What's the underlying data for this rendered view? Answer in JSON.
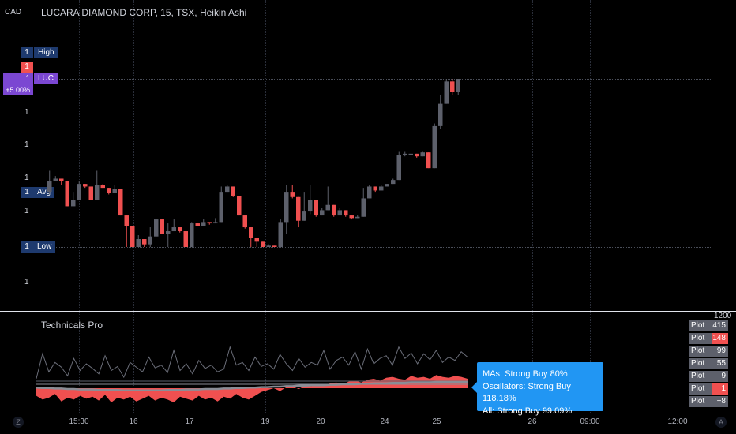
{
  "header": {
    "currency": "CAD",
    "symbol_title": "LUCARA DIAMOND CORP, 15, TSX, Heikin Ashi"
  },
  "price_axis": {
    "labels": [
      "1",
      "1",
      "1",
      "1",
      "1",
      "1"
    ],
    "tags": {
      "high": {
        "value": "1",
        "label": "High"
      },
      "red_value": "1",
      "current": {
        "value": "1",
        "label": "LUC",
        "change": "+5.00%"
      },
      "avg": {
        "value": "1",
        "label": "Avg"
      },
      "low": {
        "value": "1",
        "label": "Low"
      }
    }
  },
  "indicator": {
    "name": "Technicals Pro",
    "scale_top": "1200",
    "plots": [
      {
        "label": "Plot",
        "value": "415",
        "color": "#5d606b"
      },
      {
        "label": "Plot",
        "value": "148",
        "color": "#f05050"
      },
      {
        "label": "Plot",
        "value": "99",
        "color": "#5d606b"
      },
      {
        "label": "Plot",
        "value": "55",
        "color": "#5d606b"
      },
      {
        "label": "Plot",
        "value": "9",
        "color": "#5d606b"
      },
      {
        "label": "Plot",
        "value": "1",
        "color": "#f05050"
      },
      {
        "label": "Plot",
        "value": "−8",
        "color": "#5d606b"
      }
    ],
    "summary": {
      "mas": "MAs: Strong Buy 80%",
      "oscillators": "Oscillators: Strong Buy 118.18%",
      "all": "All: Strong Buy 99.09%"
    }
  },
  "time_axis": {
    "ticks": [
      "15:30",
      "16",
      "17",
      "19",
      "20",
      "24",
      "25",
      "26",
      "09:00",
      "12:00"
    ],
    "left_icon": "Z",
    "right_icon": "A"
  },
  "colors": {
    "bull": "#5d606b",
    "bear": "#f05050",
    "accent": "#2196f3",
    "navy_tag": "#1e3a6e",
    "purple_tag": "#7b47d2"
  },
  "chart_data": {
    "type": "candlestick",
    "bull_color": "#5d606b",
    "bear_color": "#f05050",
    "candles": [
      {
        "o": 4.2,
        "c": 5.0,
        "h": 5.8,
        "l": 4.0,
        "dir": "up"
      },
      {
        "o": 5.0,
        "c": 5.2,
        "h": 5.4,
        "l": 5.0,
        "dir": "up"
      },
      {
        "o": 5.2,
        "c": 5.0,
        "h": 5.2,
        "l": 4.7,
        "dir": "down"
      },
      {
        "o": 5.0,
        "c": 3.1,
        "h": 5.0,
        "l": 3.1,
        "dir": "down"
      },
      {
        "o": 3.1,
        "c": 3.6,
        "h": 4.2,
        "l": 3.1,
        "dir": "up"
      },
      {
        "o": 3.6,
        "c": 4.8,
        "h": 5.0,
        "l": 3.6,
        "dir": "up"
      },
      {
        "o": 4.8,
        "c": 4.6,
        "h": 4.8,
        "l": 4.5,
        "dir": "down"
      },
      {
        "o": 4.6,
        "c": 3.6,
        "h": 4.6,
        "l": 3.6,
        "dir": "down"
      },
      {
        "o": 3.6,
        "c": 4.7,
        "h": 5.8,
        "l": 3.6,
        "dir": "up"
      },
      {
        "o": 4.7,
        "c": 4.5,
        "h": 4.8,
        "l": 4.5,
        "dir": "down"
      },
      {
        "o": 4.5,
        "c": 4.1,
        "h": 4.5,
        "l": 4.0,
        "dir": "down"
      },
      {
        "o": 4.1,
        "c": 4.4,
        "h": 4.7,
        "l": 4.1,
        "dir": "up"
      },
      {
        "o": 4.4,
        "c": 2.4,
        "h": 4.4,
        "l": 2.4,
        "dir": "down"
      },
      {
        "o": 2.4,
        "c": 1.6,
        "h": 2.4,
        "l": 0.0,
        "dir": "down"
      },
      {
        "o": 1.6,
        "c": 0.0,
        "h": 1.6,
        "l": 0.0,
        "dir": "down"
      },
      {
        "o": 0.0,
        "c": 0.6,
        "h": 0.9,
        "l": 0.0,
        "dir": "up"
      },
      {
        "o": 0.6,
        "c": 0.2,
        "h": 0.6,
        "l": 0.0,
        "dir": "down"
      },
      {
        "o": 0.2,
        "c": 0.8,
        "h": 1.5,
        "l": 0.0,
        "dir": "up"
      },
      {
        "o": 0.8,
        "c": 2.1,
        "h": 2.1,
        "l": 0.8,
        "dir": "up"
      },
      {
        "o": 2.1,
        "c": 1.0,
        "h": 2.1,
        "l": 1.0,
        "dir": "down"
      },
      {
        "o": 1.0,
        "c": 1.2,
        "h": 1.8,
        "l": 0.0,
        "dir": "up"
      },
      {
        "o": 1.2,
        "c": 1.5,
        "h": 2.1,
        "l": 1.2,
        "dir": "up"
      },
      {
        "o": 1.5,
        "c": 1.2,
        "h": 1.5,
        "l": 1.1,
        "dir": "down"
      },
      {
        "o": 1.2,
        "c": 0.0,
        "h": 1.2,
        "l": 0.0,
        "dir": "down"
      },
      {
        "o": 0.0,
        "c": 1.8,
        "h": 1.9,
        "l": 0.0,
        "dir": "up"
      },
      {
        "o": 1.8,
        "c": 1.6,
        "h": 1.8,
        "l": 1.6,
        "dir": "down"
      },
      {
        "o": 1.6,
        "c": 1.9,
        "h": 2.1,
        "l": 1.6,
        "dir": "up"
      },
      {
        "o": 1.9,
        "c": 1.8,
        "h": 1.9,
        "l": 1.7,
        "dir": "down"
      },
      {
        "o": 1.8,
        "c": 1.9,
        "h": 2.2,
        "l": 1.8,
        "dir": "up"
      },
      {
        "o": 1.9,
        "c": 4.2,
        "h": 4.6,
        "l": 1.9,
        "dir": "up"
      },
      {
        "o": 4.2,
        "c": 4.6,
        "h": 4.7,
        "l": 4.2,
        "dir": "up"
      },
      {
        "o": 4.6,
        "c": 3.9,
        "h": 4.6,
        "l": 3.8,
        "dir": "down"
      },
      {
        "o": 3.9,
        "c": 2.4,
        "h": 3.9,
        "l": 2.4,
        "dir": "down"
      },
      {
        "o": 2.4,
        "c": 1.5,
        "h": 2.4,
        "l": 1.4,
        "dir": "down"
      },
      {
        "o": 1.5,
        "c": 0.7,
        "h": 1.5,
        "l": 0.0,
        "dir": "down"
      },
      {
        "o": 0.7,
        "c": 0.4,
        "h": 0.7,
        "l": 0.0,
        "dir": "down"
      },
      {
        "o": 0.4,
        "c": 0.0,
        "h": 0.4,
        "l": 0.0,
        "dir": "down"
      },
      {
        "o": 0.0,
        "c": 0.1,
        "h": 0.2,
        "l": 0.0,
        "dir": "up"
      },
      {
        "o": 0.1,
        "c": 0.0,
        "h": 0.1,
        "l": 0.0,
        "dir": "down"
      },
      {
        "o": 0.0,
        "c": 1.9,
        "h": 2.1,
        "l": 0.0,
        "dir": "up"
      },
      {
        "o": 1.9,
        "c": 4.2,
        "h": 4.7,
        "l": 1.0,
        "dir": "up"
      },
      {
        "o": 4.2,
        "c": 3.8,
        "h": 4.7,
        "l": 3.7,
        "dir": "down"
      },
      {
        "o": 3.8,
        "c": 2.0,
        "h": 3.8,
        "l": 1.5,
        "dir": "down"
      },
      {
        "o": 2.0,
        "c": 2.7,
        "h": 4.2,
        "l": 2.0,
        "dir": "up"
      },
      {
        "o": 2.7,
        "c": 3.6,
        "h": 4.7,
        "l": 2.5,
        "dir": "up"
      },
      {
        "o": 3.6,
        "c": 2.4,
        "h": 3.6,
        "l": 2.3,
        "dir": "down"
      },
      {
        "o": 2.4,
        "c": 2.8,
        "h": 3.0,
        "l": 2.4,
        "dir": "up"
      },
      {
        "o": 2.8,
        "c": 3.2,
        "h": 4.6,
        "l": 2.8,
        "dir": "up"
      },
      {
        "o": 3.2,
        "c": 2.4,
        "h": 3.2,
        "l": 2.3,
        "dir": "down"
      },
      {
        "o": 2.4,
        "c": 2.8,
        "h": 3.0,
        "l": 2.4,
        "dir": "up"
      },
      {
        "o": 2.8,
        "c": 2.4,
        "h": 2.8,
        "l": 2.3,
        "dir": "down"
      },
      {
        "o": 2.4,
        "c": 2.2,
        "h": 2.4,
        "l": 2.1,
        "dir": "down"
      },
      {
        "o": 2.2,
        "c": 2.3,
        "h": 2.4,
        "l": 2.2,
        "dir": "up"
      },
      {
        "o": 2.3,
        "c": 3.7,
        "h": 4.5,
        "l": 2.3,
        "dir": "up"
      },
      {
        "o": 3.7,
        "c": 4.6,
        "h": 4.7,
        "l": 3.7,
        "dir": "up"
      },
      {
        "o": 4.6,
        "c": 4.3,
        "h": 4.6,
        "l": 4.2,
        "dir": "down"
      },
      {
        "o": 4.3,
        "c": 4.6,
        "h": 4.7,
        "l": 4.3,
        "dir": "up"
      },
      {
        "o": 4.6,
        "c": 4.8,
        "h": 4.8,
        "l": 4.6,
        "dir": "up"
      },
      {
        "o": 4.8,
        "c": 5.1,
        "h": 5.2,
        "l": 4.8,
        "dir": "up"
      },
      {
        "o": 5.1,
        "c": 7.0,
        "h": 7.3,
        "l": 5.1,
        "dir": "up"
      },
      {
        "o": 7.0,
        "c": 7.1,
        "h": 7.3,
        "l": 6.9,
        "dir": "up"
      },
      {
        "o": 7.1,
        "c": 7.1,
        "h": 7.1,
        "l": 7.0,
        "dir": "up"
      },
      {
        "o": 7.1,
        "c": 6.9,
        "h": 7.1,
        "l": 6.8,
        "dir": "down"
      },
      {
        "o": 6.9,
        "c": 7.2,
        "h": 7.3,
        "l": 6.9,
        "dir": "up"
      },
      {
        "o": 7.2,
        "c": 6.0,
        "h": 7.2,
        "l": 6.0,
        "dir": "down"
      },
      {
        "o": 6.0,
        "c": 9.2,
        "h": 9.4,
        "l": 6.0,
        "dir": "up"
      },
      {
        "o": 9.2,
        "c": 10.9,
        "h": 11.6,
        "l": 9.0,
        "dir": "up"
      },
      {
        "o": 10.9,
        "c": 12.6,
        "h": 12.8,
        "l": 10.9,
        "dir": "up"
      },
      {
        "o": 12.6,
        "c": 11.8,
        "h": 12.8,
        "l": 11.6,
        "dir": "down"
      },
      {
        "o": 11.8,
        "c": 12.8,
        "h": 12.8,
        "l": 11.6,
        "dir": "up"
      }
    ],
    "ylim": [
      0,
      12.8
    ],
    "indicator_series": {
      "gray_line": [
        18,
        55,
        28,
        42,
        35,
        22,
        48,
        30,
        40,
        33,
        25,
        52,
        30,
        36,
        20,
        42,
        35,
        28,
        50,
        34,
        38,
        27,
        60,
        30,
        40,
        25,
        45,
        33,
        38,
        28,
        32,
        65,
        38,
        42,
        30,
        50,
        36,
        40,
        32,
        54,
        40,
        30,
        48,
        35,
        42,
        38,
        60,
        32,
        45,
        50,
        38,
        58,
        32,
        62,
        40,
        48,
        52,
        38,
        65,
        48,
        56,
        40,
        55,
        46,
        60,
        42,
        50,
        45,
        58,
        50
      ],
      "red_area": [
        -8,
        -12,
        -10,
        -6,
        -14,
        -10,
        -12,
        -8,
        -11,
        -9,
        -13,
        -7,
        -15,
        -10,
        -12,
        -9,
        -14,
        -11,
        -8,
        -13,
        -10,
        -12,
        -15,
        -9,
        -11,
        -13,
        -8,
        -12,
        -10,
        -14,
        -9,
        -11,
        -6,
        -10,
        -12,
        -8,
        -4,
        -2,
        0,
        -3,
        1,
        2,
        -1,
        3,
        2,
        4,
        3,
        5,
        6,
        4,
        7,
        8,
        6,
        9,
        10,
        8,
        11,
        12,
        10,
        9,
        13,
        11,
        12,
        10,
        14,
        12,
        11,
        13,
        12,
        10
      ],
      "ma_line": [
        -2,
        -3,
        -3,
        -4,
        -4,
        -5,
        -5,
        -6,
        -6,
        -6,
        -7,
        -7,
        -7,
        -7,
        -8,
        -8,
        -8,
        -8,
        -8,
        -8,
        -8,
        -7,
        -7,
        -7,
        -6,
        -6,
        -6,
        -5,
        -5,
        -5,
        -4,
        -4,
        -3,
        -3,
        -2,
        -2,
        -1,
        -1,
        0,
        0,
        1,
        1,
        2,
        2,
        3,
        3,
        3,
        4,
        4,
        5,
        5,
        5,
        6,
        6,
        7,
        7,
        7,
        8,
        8,
        8,
        9,
        9,
        9,
        9,
        10,
        10,
        10,
        10,
        10,
        10
      ]
    }
  }
}
